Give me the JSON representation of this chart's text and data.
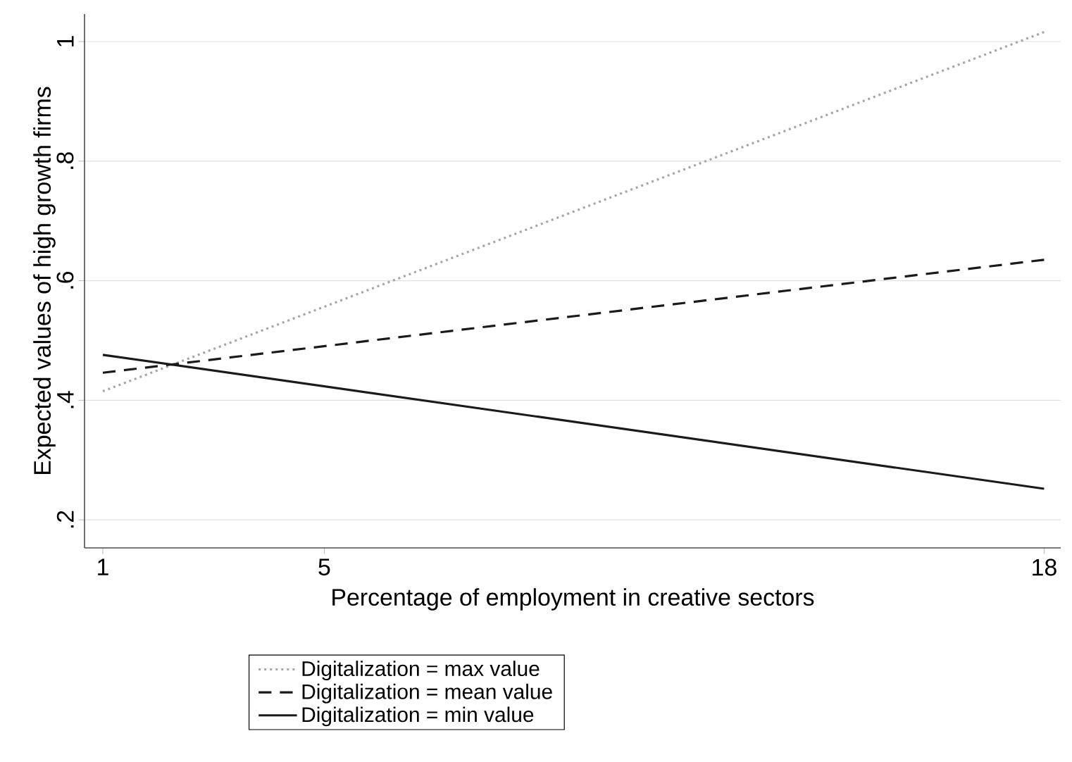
{
  "chart_data": {
    "type": "line",
    "xlabel": "Percentage of employment in creative sectors",
    "ylabel": "Expected values of high growth firms",
    "x": [
      1,
      18
    ],
    "series": [
      {
        "name": "Digitalization = max value",
        "color": "#a6a6a6",
        "line_style": "dotted",
        "values": [
          0.415,
          1.016
        ]
      },
      {
        "name": "Digitalization = mean value",
        "color": "#1a1a1a",
        "line_style": "dashed",
        "values": [
          0.446,
          0.635
        ]
      },
      {
        "name": "Digitalization = min value",
        "color": "#1a1a1a",
        "line_style": "solid",
        "values": [
          0.476,
          0.252
        ]
      }
    ],
    "xlim": [
      0.67,
      18.3
    ],
    "ylim": [
      0.153,
      1.046
    ],
    "xticks": [
      1,
      5,
      18
    ],
    "yticks": [
      {
        "value": 0.2,
        "label": ".2"
      },
      {
        "value": 0.4,
        "label": ".4"
      },
      {
        "value": 0.6,
        "label": ".6"
      },
      {
        "value": 0.8,
        "label": ".8"
      },
      {
        "value": 1,
        "label": "1"
      }
    ],
    "grid": "y",
    "legend": "bottom",
    "marker": "none"
  }
}
